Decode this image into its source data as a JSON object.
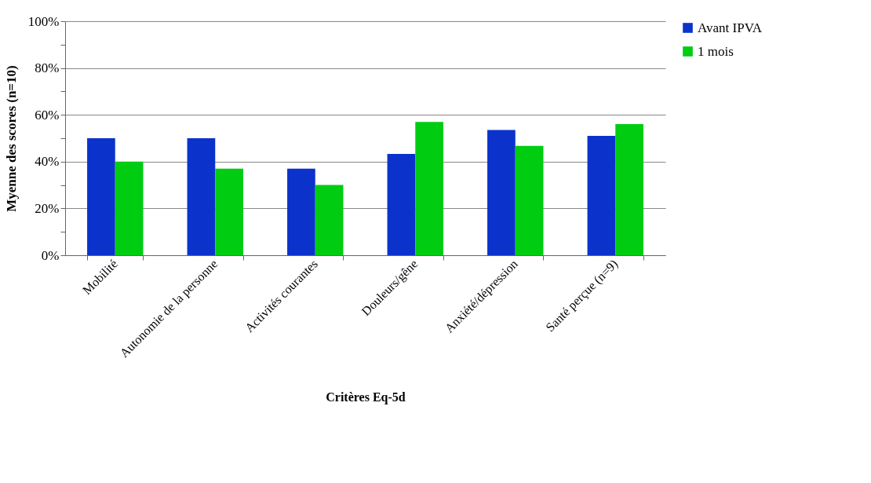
{
  "chart_data": {
    "type": "bar",
    "xlabel": "Critères Eq-5d",
    "ylabel": "Myenne des scores (n=10)",
    "categories": [
      "Mobilité",
      "Autonomie de la personne",
      "Activités courantes",
      "Douleurs/gêne",
      "Anxiété/dépression",
      "Santé perçue (n=9)"
    ],
    "series": [
      {
        "name": "Avant IPVA",
        "color": "#0b33cc",
        "values": [
          50,
          50,
          37,
          43.3,
          53.5,
          51
        ]
      },
      {
        "name": "1 mois",
        "color": "#00cc11",
        "values": [
          40,
          37,
          30,
          57,
          46.7,
          56
        ]
      }
    ],
    "ylim": [
      0,
      100
    ],
    "yticks": [
      {
        "value": 0,
        "label": "0%"
      },
      {
        "value": 10,
        "label": null
      },
      {
        "value": 20,
        "label": "20%"
      },
      {
        "value": 30,
        "label": null
      },
      {
        "value": 40,
        "label": "40%"
      },
      {
        "value": 50,
        "label": null
      },
      {
        "value": 60,
        "label": "60%"
      },
      {
        "value": 70,
        "label": null
      },
      {
        "value": 80,
        "label": "80%"
      },
      {
        "value": 90,
        "label": null
      },
      {
        "value": 100,
        "label": "100%"
      }
    ],
    "grid": "y",
    "legend": "right"
  }
}
